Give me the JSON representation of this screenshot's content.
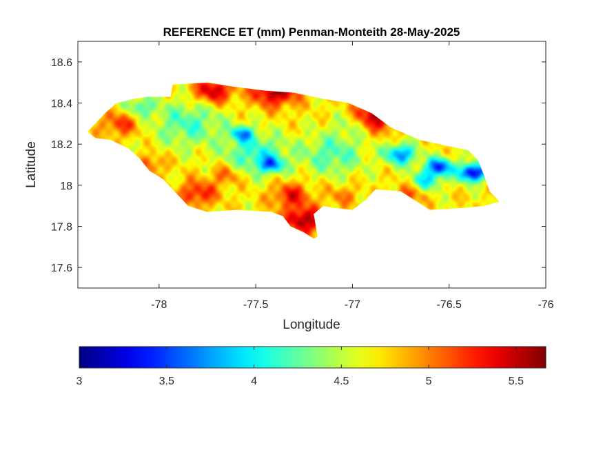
{
  "chart_data": {
    "type": "heatmap",
    "title": "REFERENCE ET (mm) Penman-Monteith 28-May-2025",
    "xlabel": "Longitude",
    "ylabel": "Latitude",
    "xlim": [
      -78.42,
      -76.0
    ],
    "ylim": [
      17.5,
      18.7
    ],
    "xticks": [
      -78,
      -77.5,
      -77,
      -76.5,
      -76
    ],
    "xtick_labels": [
      "-78",
      "-77.5",
      "-77",
      "-76.5",
      "-76"
    ],
    "yticks": [
      17.6,
      17.8,
      18,
      18.2,
      18.4,
      18.6
    ],
    "ytick_labels": [
      "17.6",
      "17.8",
      "18",
      "18.2",
      "18.4",
      "18.6"
    ],
    "colorbar": {
      "orientation": "horizontal",
      "location": "below",
      "colormap": "jet",
      "clim": [
        3.0,
        5.67
      ],
      "ticks": [
        3,
        3.5,
        4,
        4.5,
        5,
        5.5
      ],
      "tick_labels": [
        "3",
        "3.5",
        "4",
        "4.5",
        "5",
        "5.5"
      ]
    },
    "grid": false,
    "region_outline": [
      [
        -78.37,
        18.26
      ],
      [
        -78.33,
        18.3
      ],
      [
        -78.28,
        18.35
      ],
      [
        -78.22,
        18.4
      ],
      [
        -78.13,
        18.42
      ],
      [
        -78.06,
        18.43
      ],
      [
        -77.94,
        18.43
      ],
      [
        -77.93,
        18.49
      ],
      [
        -77.75,
        18.5
      ],
      [
        -77.62,
        18.48
      ],
      [
        -77.45,
        18.46
      ],
      [
        -77.3,
        18.45
      ],
      [
        -77.15,
        18.42
      ],
      [
        -77.02,
        18.4
      ],
      [
        -76.9,
        18.35
      ],
      [
        -76.8,
        18.28
      ],
      [
        -76.65,
        18.22
      ],
      [
        -76.55,
        18.2
      ],
      [
        -76.4,
        18.17
      ],
      [
        -76.35,
        18.12
      ],
      [
        -76.32,
        18.05
      ],
      [
        -76.29,
        17.97
      ],
      [
        -76.24,
        17.92
      ],
      [
        -76.32,
        17.9
      ],
      [
        -76.42,
        17.89
      ],
      [
        -76.6,
        17.88
      ],
      [
        -76.75,
        17.97
      ],
      [
        -76.88,
        17.98
      ],
      [
        -76.93,
        17.93
      ],
      [
        -77.0,
        17.88
      ],
      [
        -77.1,
        17.89
      ],
      [
        -77.15,
        17.9
      ],
      [
        -77.2,
        17.86
      ],
      [
        -77.18,
        17.75
      ],
      [
        -77.2,
        17.74
      ],
      [
        -77.25,
        17.77
      ],
      [
        -77.32,
        17.8
      ],
      [
        -77.36,
        17.85
      ],
      [
        -77.42,
        17.87
      ],
      [
        -77.6,
        17.88
      ],
      [
        -77.75,
        17.87
      ],
      [
        -77.85,
        17.9
      ],
      [
        -77.92,
        17.97
      ],
      [
        -77.98,
        18.03
      ],
      [
        -78.05,
        18.07
      ],
      [
        -78.1,
        18.13
      ],
      [
        -78.16,
        18.18
      ],
      [
        -78.25,
        18.22
      ],
      [
        -78.33,
        18.23
      ]
    ],
    "hotspots": [
      {
        "lon": -77.4,
        "lat": 18.46,
        "value": 5.6,
        "radius": 0.12
      },
      {
        "lon": -77.72,
        "lat": 18.46,
        "value": 5.5,
        "radius": 0.1
      },
      {
        "lon": -76.88,
        "lat": 18.34,
        "value": 5.6,
        "radius": 0.12
      },
      {
        "lon": -77.25,
        "lat": 17.83,
        "value": 5.6,
        "radius": 0.1
      },
      {
        "lon": -77.32,
        "lat": 17.95,
        "value": 5.3,
        "radius": 0.1
      },
      {
        "lon": -77.8,
        "lat": 17.96,
        "value": 5.3,
        "radius": 0.1
      },
      {
        "lon": -77.65,
        "lat": 18.05,
        "value": 5.1,
        "radius": 0.08
      },
      {
        "lon": -78.2,
        "lat": 18.3,
        "value": 5.2,
        "radius": 0.1
      },
      {
        "lon": -76.7,
        "lat": 17.96,
        "value": 5.1,
        "radius": 0.08
      },
      {
        "lon": -78.05,
        "lat": 18.1,
        "value": 5.1,
        "radius": 0.08
      },
      {
        "lon": -77.05,
        "lat": 17.95,
        "value": 5.0,
        "radius": 0.08
      },
      {
        "lon": -77.85,
        "lat": 18.3,
        "value": 4.2,
        "radius": 0.18
      },
      {
        "lon": -77.5,
        "lat": 18.15,
        "value": 4.1,
        "radius": 0.16
      },
      {
        "lon": -77.1,
        "lat": 18.15,
        "value": 4.2,
        "radius": 0.16
      },
      {
        "lon": -77.0,
        "lat": 18.3,
        "value": 4.4,
        "radius": 0.1
      },
      {
        "lon": -78.1,
        "lat": 18.38,
        "value": 4.2,
        "radius": 0.08
      },
      {
        "lon": -76.75,
        "lat": 18.15,
        "value": 3.7,
        "radius": 0.08
      },
      {
        "lon": -76.55,
        "lat": 18.09,
        "value": 3.5,
        "radius": 0.07
      },
      {
        "lon": -76.38,
        "lat": 18.06,
        "value": 3.2,
        "radius": 0.07
      },
      {
        "lon": -76.62,
        "lat": 18.02,
        "value": 4.0,
        "radius": 0.08
      },
      {
        "lon": -77.42,
        "lat": 18.1,
        "value": 3.9,
        "radius": 0.06
      },
      {
        "lon": -77.57,
        "lat": 18.25,
        "value": 3.9,
        "radius": 0.06
      }
    ],
    "background_value": 4.7
  }
}
